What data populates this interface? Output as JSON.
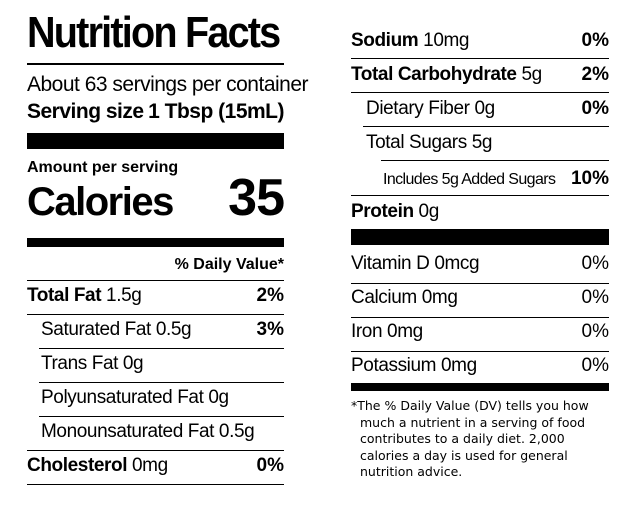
{
  "left": {
    "title": "Nutrition Facts",
    "servings_per_container": "About 63 servings per container",
    "serving_size_label": "Serving size",
    "serving_size_value": "1 Tbsp (15mL)",
    "amount_per_serving": "Amount per serving",
    "calories_label": "Calories",
    "calories_value": "35",
    "daily_value_header": "% Daily Value*",
    "nutrients": [
      {
        "name": "Total Fat",
        "amount": "1.5g",
        "dv": "2%"
      },
      {
        "name": "Saturated Fat",
        "amount": "0.5g",
        "dv": "3%"
      },
      {
        "name": "Trans Fat",
        "amount": "0g",
        "dv": ""
      },
      {
        "name": "Polyunsaturated Fat",
        "amount": "0g",
        "dv": ""
      },
      {
        "name": "Monounsaturated Fat",
        "amount": "0.5g",
        "dv": ""
      },
      {
        "name": "Cholesterol",
        "amount": "0mg",
        "dv": "0%"
      }
    ]
  },
  "right": {
    "nutrients": [
      {
        "name": "Sodium",
        "amount": "10mg",
        "dv": "0%"
      },
      {
        "name": "Total Carbohydrate",
        "amount": "5g",
        "dv": "2%"
      },
      {
        "name": "Dietary Fiber",
        "amount": "0g",
        "dv": "0%"
      },
      {
        "name": "Total Sugars",
        "amount": "5g",
        "dv": ""
      },
      {
        "name": "Includes 5g Added Sugars",
        "amount": "",
        "dv": "10%"
      },
      {
        "name": "Protein",
        "amount": "0g",
        "dv": ""
      }
    ],
    "vitamins": [
      {
        "name": "Vitamin D",
        "amount": "0mcg",
        "dv": "0%"
      },
      {
        "name": "Calcium",
        "amount": "0mg",
        "dv": "0%"
      },
      {
        "name": "Iron",
        "amount": "0mg",
        "dv": "0%"
      },
      {
        "name": "Potassium",
        "amount": "0mg",
        "dv": "0%"
      }
    ],
    "footnote_lines": [
      "*The % Daily Value (DV) tells you how",
      "much a nutrient in a serving of food",
      "contributes to a daily diet. 2,000",
      "calories a day is used for general",
      "nutrition advice."
    ]
  }
}
